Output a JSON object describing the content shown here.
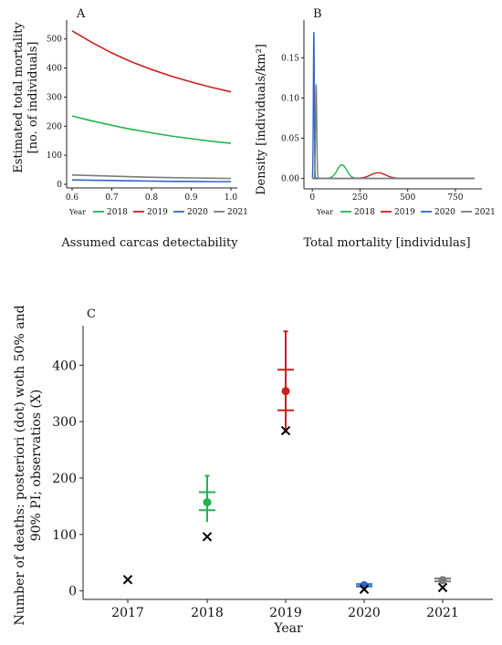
{
  "colors": {
    "2018": "#22b24c",
    "2019": "#cc1e1e",
    "2020": "#2f66c8",
    "2021": "#7a7a7a",
    "axis": "#222222",
    "marker_x": "#000000"
  },
  "chart_data": [
    {
      "panel": "A",
      "type": "line",
      "xlabel": "Assumed carcas detectability",
      "ylabel_line1": "Estimated total mortality",
      "ylabel_line2": "[no. of individuals]",
      "xlim": [
        0.6,
        1.0
      ],
      "ylim": [
        0,
        540
      ],
      "xticks": [
        "0.6",
        "0.7",
        "0.8",
        "0.9",
        "1.0"
      ],
      "xtick_values": [
        0.6,
        0.7,
        0.8,
        0.9,
        1.0
      ],
      "yticks": [
        "0",
        "100",
        "200",
        "300",
        "400",
        "500"
      ],
      "ytick_values": [
        0,
        100,
        200,
        300,
        400,
        500
      ],
      "legend_title": "Year",
      "legend_position": "bottom",
      "x": [
        0.6,
        0.65,
        0.7,
        0.75,
        0.8,
        0.85,
        0.9,
        0.95,
        1.0
      ],
      "series": [
        {
          "name": "2018",
          "color_key": "2018",
          "values": [
            235,
            218,
            203,
            189,
            177,
            166,
            157,
            148,
            141
          ]
        },
        {
          "name": "2019",
          "color_key": "2019",
          "values": [
            528,
            488,
            452,
            421,
            395,
            372,
            352,
            334,
            318
          ]
        },
        {
          "name": "2020",
          "color_key": "2020",
          "values": [
            15,
            14,
            13,
            12,
            11,
            10,
            10,
            9,
            9
          ]
        },
        {
          "name": "2021",
          "color_key": "2021",
          "values": [
            32,
            30,
            28,
            26,
            24,
            23,
            22,
            21,
            20
          ]
        }
      ]
    },
    {
      "panel": "B",
      "type": "line",
      "xlabel": "Total mortality [individulas]",
      "ylabel": "Density [individuals/km²]",
      "xlim": [
        -20,
        870
      ],
      "ylim": [
        -0.005,
        0.19
      ],
      "xticks": [
        "0",
        "250",
        "500",
        "750"
      ],
      "xtick_values": [
        0,
        250,
        500,
        750
      ],
      "yticks": [
        "0.00",
        "0.05",
        "0.10",
        "0.15"
      ],
      "ytick_values": [
        0,
        0.05,
        0.1,
        0.15
      ],
      "legend_title": "Year",
      "legend_position": "bottom",
      "curves": [
        {
          "name": "2018",
          "color_key": "2018",
          "peak_x": 155,
          "peak_y": 0.017,
          "sd": 25
        },
        {
          "name": "2019",
          "color_key": "2019",
          "peak_x": 345,
          "peak_y": 0.007,
          "sd": 40
        },
        {
          "name": "2020",
          "color_key": "2020",
          "peak_x": 8,
          "peak_y": 0.182,
          "sd": 2.5
        },
        {
          "name": "2021",
          "color_key": "2021",
          "peak_x": 20,
          "peak_y": 0.117,
          "sd": 3.2
        }
      ],
      "baseline_end": 850
    },
    {
      "panel": "C",
      "type": "scatter",
      "xlabel": "Year",
      "ylabel_line1": "Number of deaths: posteriori (dot) woth 50% and",
      "ylabel_line2": "90% PI; observatios (X)",
      "categories": [
        "2017",
        "2018",
        "2019",
        "2020",
        "2021"
      ],
      "ylim": [
        -15,
        470
      ],
      "yticks": [
        "0",
        "100",
        "200",
        "300",
        "400"
      ],
      "ytick_values": [
        0,
        100,
        200,
        300,
        400
      ],
      "grid": false,
      "posterior": [
        {
          "year": "2018",
          "color_key": "2018",
          "median": 157,
          "pi50": [
            143,
            175
          ],
          "pi90": [
            122,
            204
          ]
        },
        {
          "year": "2019",
          "color_key": "2019",
          "median": 354,
          "pi50": [
            320,
            392
          ],
          "pi90": [
            280,
            460
          ]
        },
        {
          "year": "2020",
          "color_key": "2020",
          "median": 10,
          "pi50": [
            8,
            12
          ],
          "pi90": [
            6,
            14
          ]
        },
        {
          "year": "2021",
          "color_key": "2021",
          "median": 19,
          "pi50": [
            17,
            22
          ],
          "pi90": [
            15,
            24
          ]
        }
      ],
      "observed": [
        {
          "year": "2017",
          "value": 20
        },
        {
          "year": "2018",
          "value": 96
        },
        {
          "year": "2019",
          "value": 284
        },
        {
          "year": "2020",
          "value": 3
        },
        {
          "year": "2021",
          "value": 6
        }
      ]
    }
  ],
  "panel_labels": {
    "a": "A",
    "b": "B",
    "c": "C"
  },
  "legend_items": [
    "2018",
    "2019",
    "2020",
    "2021"
  ],
  "legend_title": "Year"
}
